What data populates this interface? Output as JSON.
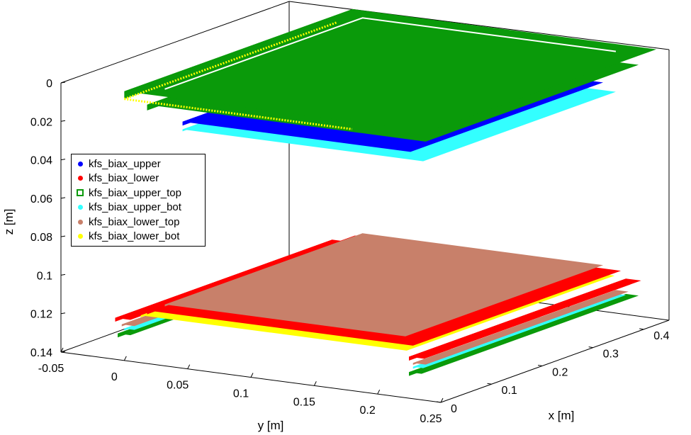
{
  "chart_data": {
    "type": "scatter3d",
    "xlabel": "x [m]",
    "ylabel": "y [m]",
    "zlabel": "z [m]",
    "xlim": [
      0,
      0.45
    ],
    "ylim": [
      -0.05,
      0.25
    ],
    "zlim": [
      0,
      0.14
    ],
    "z_reversed": true,
    "xticks": [
      "0",
      "0.1",
      "0.2",
      "0.3",
      "0.4"
    ],
    "yticks": [
      "-0.05",
      "0",
      "0.05",
      "0.1",
      "0.15",
      "0.2",
      "0.25"
    ],
    "zticks": [
      "0",
      "0.02",
      "0.04",
      "0.06",
      "0.08",
      "0.1",
      "0.12",
      "0.14"
    ],
    "legend_position": "left",
    "series": [
      {
        "name": "kfs_biax_upper",
        "color": "#0000ff",
        "marker": "dot"
      },
      {
        "name": "kfs_biax_lower",
        "color": "#ff0000",
        "marker": "dot"
      },
      {
        "name": "kfs_biax_upper_top",
        "color": "#0a9a0a",
        "marker": "square"
      },
      {
        "name": "kfs_biax_upper_bot",
        "color": "#33ffff",
        "marker": "dot"
      },
      {
        "name": "kfs_biax_lower_top",
        "color": "#c8806a",
        "marker": "dot"
      },
      {
        "name": "kfs_biax_lower_bot",
        "color": "#ffff00",
        "marker": "dot"
      }
    ]
  }
}
